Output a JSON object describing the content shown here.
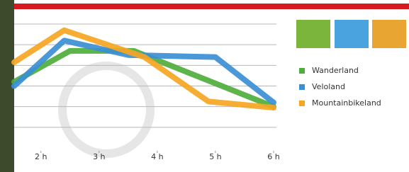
{
  "chart_data": {
    "type": "line",
    "xlim": [
      1.54,
      6.0
    ],
    "xticks": [
      {
        "value": 2,
        "label": "2 h"
      },
      {
        "value": 3,
        "label": "3 h"
      },
      {
        "value": 4,
        "label": "4 h"
      },
      {
        "value": 5,
        "label": "5 h"
      },
      {
        "value": 6,
        "label": "6 h"
      }
    ],
    "ylim": [
      0,
      6
    ],
    "yticks": [
      1,
      2,
      3,
      4,
      5,
      6
    ],
    "grid": true,
    "series": [
      {
        "name": "Wanderland",
        "color": "#4fae3b",
        "x": [
          1.54,
          2.5,
          3.6,
          6.0
        ],
        "values": [
          3.2,
          4.7,
          4.7,
          2.0
        ]
      },
      {
        "name": "Veloland",
        "color": "#3b8fd5",
        "x": [
          1.54,
          2.4,
          3.5,
          5.0,
          6.0
        ],
        "values": [
          3.0,
          5.2,
          4.5,
          4.4,
          2.2
        ]
      },
      {
        "name": "Mountainbikeland",
        "color": "#f6a623",
        "x": [
          1.54,
          2.4,
          3.78,
          4.88,
          6.0
        ],
        "values": [
          4.15,
          5.7,
          4.4,
          2.25,
          1.95
        ]
      }
    ]
  }
}
